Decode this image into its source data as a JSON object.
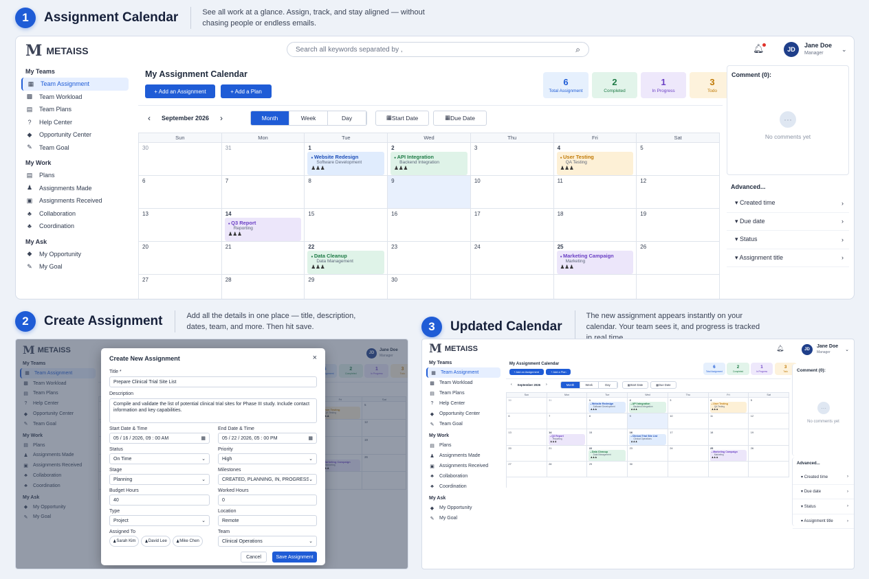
{
  "sections": [
    {
      "num": "1",
      "title": "Assignment Calendar",
      "desc": "See all work at a glance. Assign, track, and stay aligned — without chasing people or endless emails."
    },
    {
      "num": "2",
      "title": "Create Assignment",
      "desc": "Add all the details in one place — title, description, dates, team, and more. Then hit save."
    },
    {
      "num": "3",
      "title": "Updated Calendar",
      "desc": "The new assignment appears instantly on your calendar. Your team sees it, and progress is tracked in real time."
    }
  ],
  "app": {
    "brand": "METAISS",
    "brand_mark": "M",
    "search_placeholder": "Search all keywords separated by ,",
    "user": {
      "initials": "JD",
      "name": "Jane Doe",
      "role": "Manager"
    }
  },
  "sidebar": {
    "groups": [
      {
        "heading": "My Teams",
        "items": [
          {
            "label": "Team Assignment",
            "icon": "calendar-icon",
            "glyph": "▦",
            "active": true
          },
          {
            "label": "Team Workload",
            "icon": "grid-icon",
            "glyph": "▩"
          },
          {
            "label": "Team Plans",
            "icon": "plans-icon",
            "glyph": "▤"
          },
          {
            "label": "Help Center",
            "icon": "help-icon",
            "glyph": "?"
          },
          {
            "label": "Opportunity Center",
            "icon": "tag-icon",
            "glyph": "◆"
          },
          {
            "label": "Team Goal",
            "icon": "pen-icon",
            "glyph": "✎"
          }
        ]
      },
      {
        "heading": "My Work",
        "items": [
          {
            "label": "Plans",
            "icon": "list-icon",
            "glyph": "▤"
          },
          {
            "label": "Assignments Made",
            "icon": "user-icon",
            "glyph": "♟"
          },
          {
            "label": "Assignments Received",
            "icon": "inbox-icon",
            "glyph": "▣"
          },
          {
            "label": "Collaboration",
            "icon": "people-icon",
            "glyph": "♣"
          },
          {
            "label": "Coordination",
            "icon": "team-icon",
            "glyph": "♣"
          }
        ]
      },
      {
        "heading": "My Ask",
        "items": [
          {
            "label": "My Opportunity",
            "icon": "thumb-icon",
            "glyph": "◆"
          },
          {
            "label": "My Goal",
            "icon": "pen-icon",
            "glyph": "✎"
          }
        ]
      }
    ]
  },
  "calendar": {
    "title": "My Assignment Calendar",
    "add_assignment": "+ Add an Assignment",
    "add_plan": "+ Add a Plan",
    "stats": [
      {
        "value": "6",
        "label": "Total Assignment",
        "color": "#1f5cd6",
        "bg": "#e6f0fd"
      },
      {
        "value": "2",
        "label": "Completed",
        "color": "#1d7a45",
        "bg": "#e2f4ea"
      },
      {
        "value": "1",
        "label": "In Progress",
        "color": "#6a3fc4",
        "bg": "#eee8fb"
      },
      {
        "value": "3",
        "label": "Todo",
        "color": "#c07a07",
        "bg": "#fdf2dc"
      }
    ],
    "month_label": "September 2026",
    "views": [
      "Month",
      "Week",
      "Day"
    ],
    "start_date": "Start Date",
    "due_date": "Due Date",
    "weekdays": [
      "Sun",
      "Mon",
      "Tue",
      "Wed",
      "Thu",
      "Fri",
      "Sat"
    ],
    "days": [
      "30",
      "31",
      "1",
      "2",
      "3",
      "4",
      "5",
      "6",
      "7",
      "8",
      "9",
      "10",
      "11",
      "12",
      "13",
      "14",
      "15",
      "16",
      "17",
      "18",
      "19",
      "20",
      "21",
      "22",
      "23",
      "24",
      "25",
      "26",
      "27",
      "28",
      "29",
      "30",
      "",
      "",
      ""
    ],
    "out_days": [
      0,
      1
    ],
    "selected_day": 10,
    "events": [
      {
        "cell": 2,
        "title": "Website Redesign",
        "sub": "Software Development",
        "color": "blue",
        "people": "♟♟♟"
      },
      {
        "cell": 3,
        "title": "API Integration",
        "sub": "Backend Integration",
        "color": "green",
        "people": "♟♟♟"
      },
      {
        "cell": 5,
        "title": "User Testing",
        "sub": "QA Testing",
        "color": "orange",
        "people": "♟♟♟"
      },
      {
        "cell": 15,
        "title": "Q3 Report",
        "sub": "Reporting",
        "color": "purple",
        "people": "♟♟♟"
      },
      {
        "cell": 23,
        "title": "Data Cleanup",
        "sub": "Data Management",
        "color": "green",
        "people": "♟♟♟"
      },
      {
        "cell": 26,
        "title": "Marketing Campaign",
        "sub": "Marketing",
        "color": "purple",
        "people": "♟♟♟"
      }
    ],
    "new_event": {
      "cell": 17,
      "title": "Clinical Trial Site List",
      "sub": "Clinical Operations",
      "color": "blue",
      "people": "♟♟♟"
    }
  },
  "comments": {
    "title": "Comment (0):",
    "empty": "No comments yet",
    "icon": "comment-icon"
  },
  "advanced": {
    "title": "Advanced...",
    "rows": [
      "Created time",
      "Due date",
      "Status",
      "Assignment title"
    ]
  },
  "modal": {
    "title": "Create New Assignment",
    "close": "×",
    "title_label": "Title *",
    "title_value": "Prepare Clinical Trial Site List",
    "desc_label": "Description",
    "desc_value": "Compile and validate the list of potential clinical trial sites for Phase III study. Include contact information and key capabilities.",
    "start_label": "Start Date & Time",
    "start_value": "05 / 16 / 2026,  09 : 00  AM",
    "end_label": "End Date & Time",
    "end_value": "05 / 22 / 2026,  05 : 00  PM",
    "status_label": "Status",
    "status_value": "On Time",
    "priority_label": "Priority",
    "priority_value": "High",
    "stage_label": "Stage",
    "stage_value": "Planning",
    "milestones_label": "Milestones",
    "milestones_value": "CREATED, PLANNING, IN, PROGRESS, ...",
    "budget_label": "Budget Hours",
    "budget_value": "40",
    "worked_label": "Worked Hours",
    "worked_value": "0",
    "type_label": "Type",
    "type_value": "Project",
    "location_label": "Location",
    "location_value": "Remote",
    "assigned_label": "Assigned To",
    "assignees": [
      "Sarah Kim",
      "David Lee",
      "Mike Chen"
    ],
    "team_label": "Team",
    "team_value": "Clinical Operations",
    "cancel": "Cancel",
    "save": "Save Assignment"
  }
}
